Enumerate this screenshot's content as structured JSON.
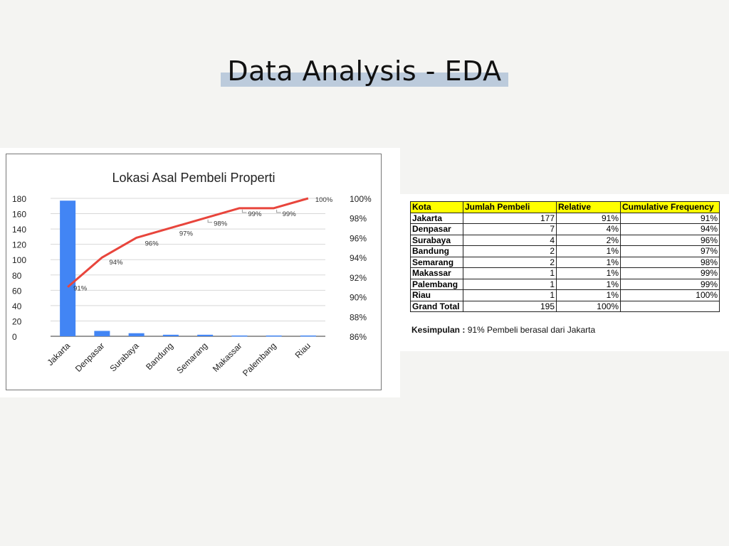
{
  "slide": {
    "title": "Data Analysis - EDA"
  },
  "chart_data": {
    "type": "bar",
    "title": "Lokasi Asal Pembeli Properti",
    "categories": [
      "Jakarta",
      "Denpasar",
      "Surabaya",
      "Bandung",
      "Semarang",
      "Makassar",
      "Palembang",
      "Riau"
    ],
    "series": [
      {
        "type": "bar",
        "axis": "left",
        "color": "#4285f4",
        "values": [
          177,
          7,
          4,
          2,
          2,
          1,
          1,
          1
        ]
      },
      {
        "type": "line",
        "axis": "right",
        "color": "#e8453c",
        "values": [
          0.91,
          0.94,
          0.96,
          0.97,
          0.98,
          0.99,
          0.99,
          1.0
        ],
        "labels": [
          "91%",
          "94%",
          "96%",
          "97%",
          "98%",
          "99%",
          "99%",
          "100%"
        ]
      }
    ],
    "ylim": [
      0,
      180
    ],
    "yticks": [
      "0",
      "20",
      "40",
      "60",
      "80",
      "100",
      "120",
      "140",
      "160",
      "180"
    ],
    "y2lim": [
      0.86,
      1.0
    ],
    "y2ticks": [
      "86%",
      "88%",
      "90%",
      "92%",
      "94%",
      "96%",
      "98%",
      "100%"
    ],
    "grid": true,
    "xlabel": "",
    "ylabel": ""
  },
  "table": {
    "headers": [
      "Kota",
      "Jumlah Pembeli",
      "Relative",
      "Cumulative Frequency"
    ],
    "rows": [
      [
        "Jakarta",
        "177",
        "91%",
        "91%"
      ],
      [
        "Denpasar",
        "7",
        "4%",
        "94%"
      ],
      [
        "Surabaya",
        "4",
        "2%",
        "96%"
      ],
      [
        "Bandung",
        "2",
        "1%",
        "97%"
      ],
      [
        "Semarang",
        "2",
        "1%",
        "98%"
      ],
      [
        "Makassar",
        "1",
        "1%",
        "99%"
      ],
      [
        "Palembang",
        "1",
        "1%",
        "99%"
      ],
      [
        "Riau",
        "1",
        "1%",
        "100%"
      ],
      [
        "Grand Total",
        "195",
        "100%",
        ""
      ]
    ],
    "header_color": "#ffff00"
  },
  "conclusion": {
    "label": "Kesimpulan :",
    "text": " 91% Pembeli berasal dari Jakarta"
  }
}
